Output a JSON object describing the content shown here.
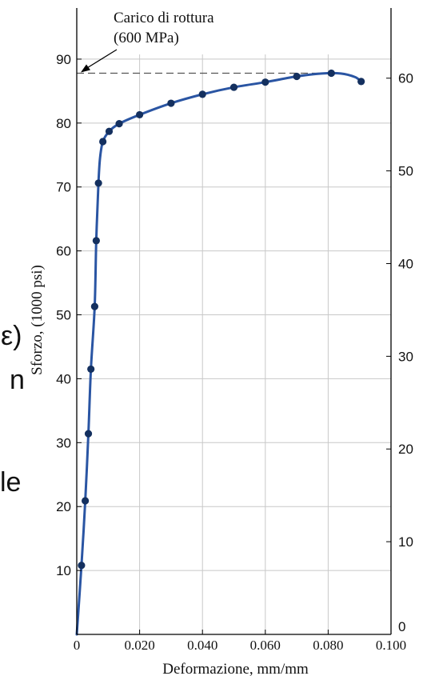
{
  "background_fragments": [
    "ε)",
    "n",
    "le"
  ],
  "chart_data": {
    "type": "line",
    "title": "",
    "annotation": {
      "line1": "Carico di rottura",
      "line2": "(600 MPa)"
    },
    "xlabel": "Deformazione, mm/mm",
    "ylabel": "Sforzo, (1000 psi)",
    "ylabel_right": "",
    "xlim": [
      0,
      0.1
    ],
    "ylim": [
      0,
      98
    ],
    "ylim_right": [
      0,
      67.57
    ],
    "x_ticks": [
      0,
      0.02,
      0.04,
      0.06,
      0.08,
      0.1
    ],
    "x_tick_labels": [
      "0",
      "0.020",
      "0.040",
      "0.060",
      "0.080",
      "0.100"
    ],
    "y_ticks": [
      10,
      20,
      30,
      40,
      50,
      60,
      70,
      80,
      90
    ],
    "y_tick_labels": [
      "10",
      "20",
      "30",
      "40",
      "50",
      "60",
      "70",
      "80",
      "90"
    ],
    "y_right_ticks": [
      0,
      10,
      20,
      30,
      40,
      50,
      60
    ],
    "y_right_tick_labels": [
      "0",
      "10",
      "20",
      "30",
      "40",
      "50",
      "60"
    ],
    "grid": true,
    "ultimate_strength": 87.8,
    "series": [
      {
        "name": "",
        "color": "#2a55a3",
        "points": [
          [
            0.0015,
            10.8
          ],
          [
            0.0027,
            20.9
          ],
          [
            0.0037,
            31.4
          ],
          [
            0.0045,
            41.5
          ],
          [
            0.0057,
            51.3
          ],
          [
            0.0062,
            61.6
          ],
          [
            0.0069,
            70.6
          ],
          [
            0.0083,
            77.1
          ],
          [
            0.0103,
            78.7
          ],
          [
            0.0135,
            79.9
          ],
          [
            0.02,
            81.3
          ],
          [
            0.03,
            83.1
          ],
          [
            0.04,
            84.5
          ],
          [
            0.05,
            85.6
          ],
          [
            0.06,
            86.4
          ],
          [
            0.07,
            87.3
          ],
          [
            0.081,
            87.8
          ],
          [
            0.0905,
            86.5
          ]
        ],
        "curve": [
          [
            0,
            0
          ],
          [
            0.0015,
            10.8
          ],
          [
            0.0027,
            20.9
          ],
          [
            0.0037,
            31.4
          ],
          [
            0.0045,
            41.5
          ],
          [
            0.0057,
            51.3
          ],
          [
            0.0062,
            61.6
          ],
          [
            0.0069,
            70.6
          ],
          [
            0.0074,
            74.5
          ],
          [
            0.0083,
            77.1
          ],
          [
            0.0103,
            78.7
          ],
          [
            0.0135,
            79.9
          ],
          [
            0.02,
            81.3
          ],
          [
            0.03,
            83.1
          ],
          [
            0.04,
            84.5
          ],
          [
            0.05,
            85.6
          ],
          [
            0.06,
            86.4
          ],
          [
            0.07,
            87.3
          ],
          [
            0.078,
            87.75
          ],
          [
            0.084,
            87.75
          ],
          [
            0.0885,
            87.2
          ],
          [
            0.0905,
            86.5
          ]
        ]
      }
    ]
  }
}
